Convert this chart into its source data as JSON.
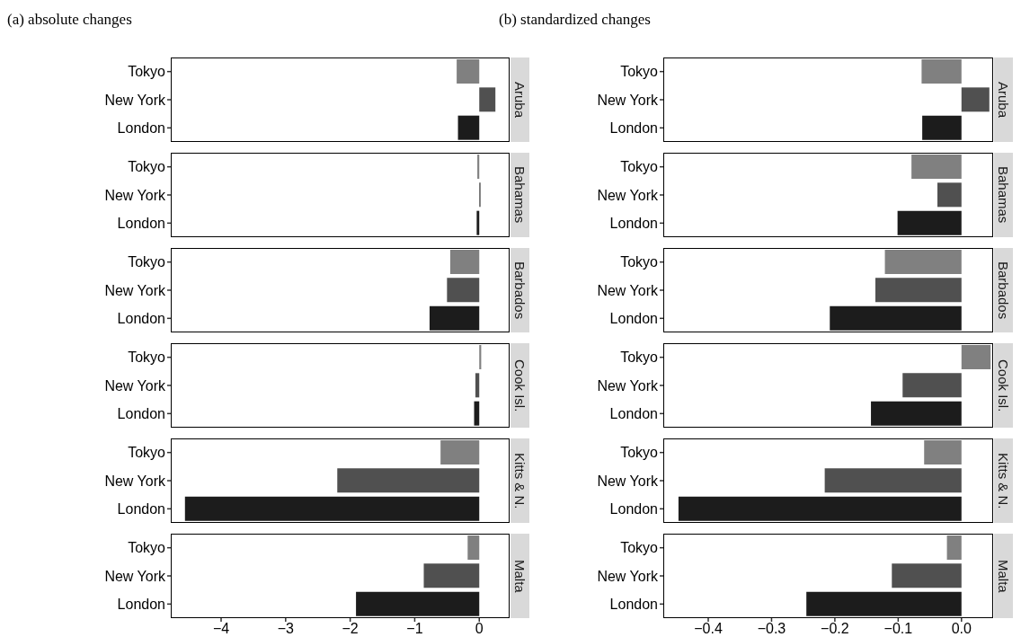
{
  "chart_data": [
    {
      "type": "bar",
      "orientation": "horizontal",
      "title": "(a) absolute changes",
      "y2label": "Aruba",
      "categories": [
        "Tokyo",
        "New York",
        "London"
      ],
      "values": [
        -0.35,
        0.25,
        -0.33
      ],
      "colors": [
        "#808080",
        "#505050",
        "#1c1c1c"
      ],
      "xlim": [
        -4.78,
        0.47
      ],
      "tick_labels": "y"
    },
    {
      "type": "bar",
      "orientation": "horizontal",
      "title": "(b) standardized changes",
      "y2label": "Aruba",
      "categories": [
        "Tokyo",
        "New York",
        "London"
      ],
      "values": [
        -0.063,
        0.044,
        -0.062
      ],
      "colors": [
        "#808080",
        "#505050",
        "#1c1c1c"
      ],
      "xlim": [
        -0.471,
        0.05
      ],
      "tick_labels": "y"
    },
    {
      "type": "bar",
      "orientation": "horizontal",
      "y2label": "Bahamas",
      "categories": [
        "Tokyo",
        "New York",
        "London"
      ],
      "values": [
        -0.03,
        0.02,
        -0.04
      ],
      "colors": [
        "#808080",
        "#505050",
        "#1c1c1c"
      ],
      "xlim": [
        -4.78,
        0.47
      ],
      "tick_labels": "y"
    },
    {
      "type": "bar",
      "orientation": "horizontal",
      "y2label": "Bahamas",
      "categories": [
        "Tokyo",
        "New York",
        "London"
      ],
      "values": [
        -0.079,
        -0.038,
        -0.101
      ],
      "colors": [
        "#808080",
        "#505050",
        "#1c1c1c"
      ],
      "xlim": [
        -0.471,
        0.05
      ],
      "tick_labels": "y"
    },
    {
      "type": "bar",
      "orientation": "horizontal",
      "y2label": "Barbados",
      "categories": [
        "Tokyo",
        "New York",
        "London"
      ],
      "values": [
        -0.45,
        -0.5,
        -0.77
      ],
      "colors": [
        "#808080",
        "#505050",
        "#1c1c1c"
      ],
      "xlim": [
        -4.78,
        0.47
      ],
      "tick_labels": "y"
    },
    {
      "type": "bar",
      "orientation": "horizontal",
      "y2label": "Barbados",
      "categories": [
        "Tokyo",
        "New York",
        "London"
      ],
      "values": [
        -0.121,
        -0.136,
        -0.208
      ],
      "colors": [
        "#808080",
        "#505050",
        "#1c1c1c"
      ],
      "xlim": [
        -0.471,
        0.05
      ],
      "tick_labels": "y"
    },
    {
      "type": "bar",
      "orientation": "horizontal",
      "y2label": "Cook Isl.",
      "categories": [
        "Tokyo",
        "New York",
        "London"
      ],
      "values": [
        0.03,
        -0.06,
        -0.08
      ],
      "colors": [
        "#808080",
        "#505050",
        "#1c1c1c"
      ],
      "xlim": [
        -4.78,
        0.47
      ],
      "tick_labels": "y"
    },
    {
      "type": "bar",
      "orientation": "horizontal",
      "y2label": "Cook Isl.",
      "categories": [
        "Tokyo",
        "New York",
        "London"
      ],
      "values": [
        0.046,
        -0.093,
        -0.143
      ],
      "colors": [
        "#808080",
        "#505050",
        "#1c1c1c"
      ],
      "xlim": [
        -0.471,
        0.05
      ],
      "tick_labels": "y"
    },
    {
      "type": "bar",
      "orientation": "horizontal",
      "y2label": "Kitts & N.",
      "categories": [
        "Tokyo",
        "New York",
        "London"
      ],
      "values": [
        -0.6,
        -2.2,
        -4.56
      ],
      "colors": [
        "#808080",
        "#505050",
        "#1c1c1c"
      ],
      "xlim": [
        -4.78,
        0.47
      ],
      "tick_labels": "y"
    },
    {
      "type": "bar",
      "orientation": "horizontal",
      "y2label": "Kitts & N.",
      "categories": [
        "Tokyo",
        "New York",
        "London"
      ],
      "values": [
        -0.059,
        -0.216,
        -0.447
      ],
      "colors": [
        "#808080",
        "#505050",
        "#1c1c1c"
      ],
      "xlim": [
        -0.471,
        0.05
      ],
      "tick_labels": "y"
    },
    {
      "type": "bar",
      "orientation": "horizontal",
      "y2label": "Malta",
      "categories": [
        "Tokyo",
        "New York",
        "London"
      ],
      "values": [
        -0.18,
        -0.86,
        -1.91
      ],
      "colors": [
        "#808080",
        "#505050",
        "#1c1c1c"
      ],
      "xlim": [
        -4.78,
        0.47
      ],
      "xticks": [
        {
          "value": -4,
          "label": "−4"
        },
        {
          "value": -3,
          "label": "−3"
        },
        {
          "value": -2,
          "label": "−2"
        },
        {
          "value": -1,
          "label": "−1"
        },
        {
          "value": 0,
          "label": "0"
        }
      ]
    },
    {
      "type": "bar",
      "orientation": "horizontal",
      "y2label": "Malta",
      "categories": [
        "Tokyo",
        "New York",
        "London"
      ],
      "values": [
        -0.023,
        -0.11,
        -0.245
      ],
      "colors": [
        "#808080",
        "#505050",
        "#1c1c1c"
      ],
      "xlim": [
        -0.471,
        0.05
      ],
      "xticks": [
        {
          "value": -0.4,
          "label": "−0.4"
        },
        {
          "value": -0.3,
          "label": "−0.3"
        },
        {
          "value": -0.2,
          "label": "−0.2"
        },
        {
          "value": -0.1,
          "label": "−0.1"
        },
        {
          "value": 0,
          "label": "0.0"
        }
      ]
    }
  ]
}
